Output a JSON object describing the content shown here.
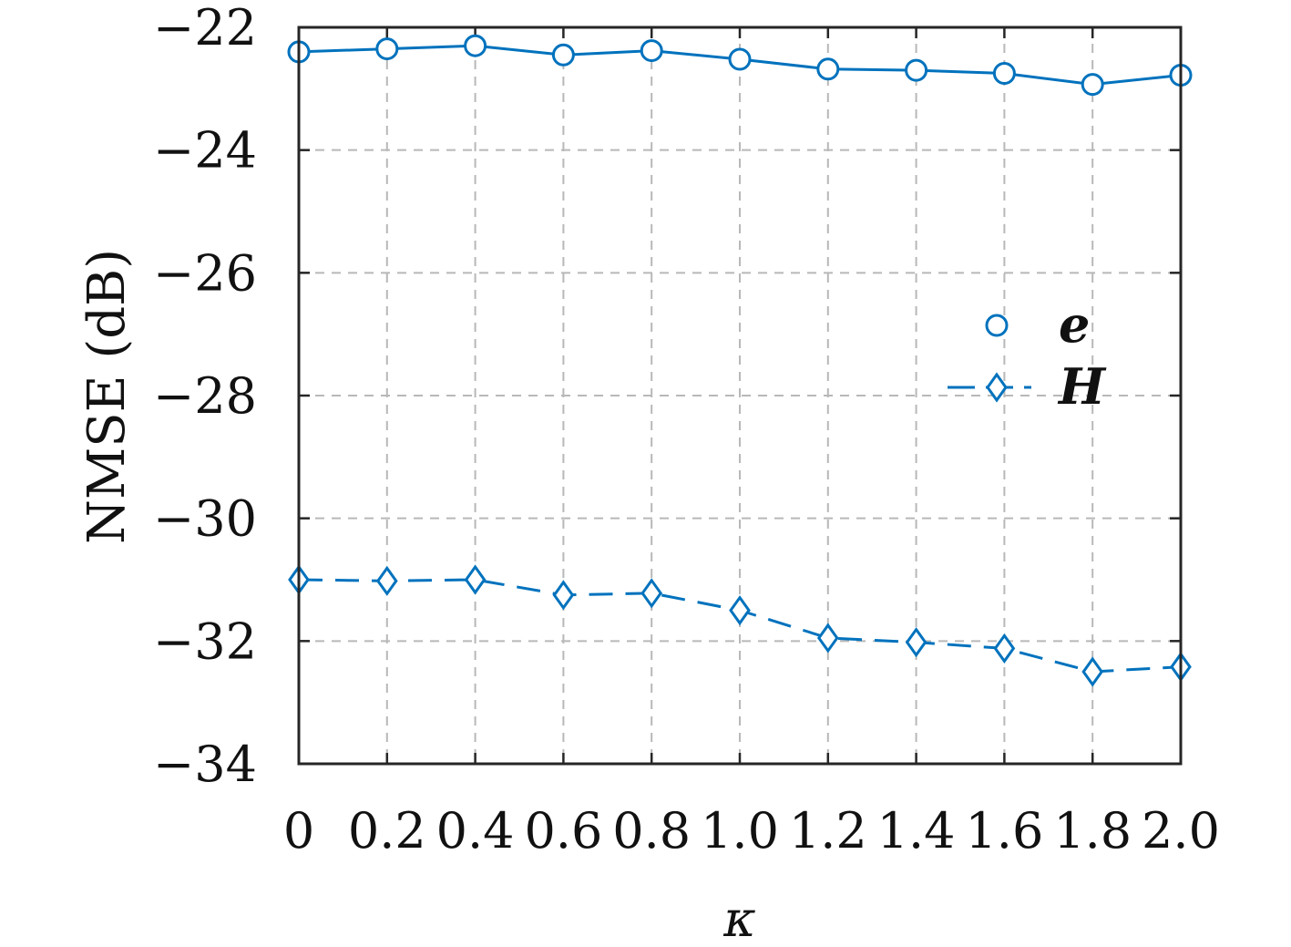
{
  "chart_data": {
    "type": "line",
    "xlabel": "κ",
    "ylabel": "NMSE (dB)",
    "x": [
      0,
      0.2,
      0.4,
      0.6,
      0.8,
      1.0,
      1.2,
      1.4,
      1.6,
      1.8,
      2.0
    ],
    "x_tick_labels": [
      "0",
      "0.2",
      "0.4",
      "0.6",
      "0.8",
      "1.0",
      "1.2",
      "1.4",
      "1.6",
      "1.8",
      "2.0"
    ],
    "y_ticks": [
      -22,
      -24,
      -26,
      -28,
      -30,
      -32,
      -34
    ],
    "y_tick_labels": [
      "−22",
      "−24",
      "−26",
      "−28",
      "−30",
      "−32",
      "−34"
    ],
    "xlim": [
      0,
      2.0
    ],
    "ylim": [
      -34,
      -22
    ],
    "grid": true,
    "legend_position": "right, middle",
    "color": "#0072BD",
    "series": [
      {
        "name": "e",
        "marker": "circle",
        "line_style": "solid",
        "legend_shows_line": false,
        "values": [
          -22.4,
          -22.35,
          -22.3,
          -22.45,
          -22.38,
          -22.52,
          -22.68,
          -22.7,
          -22.75,
          -22.93,
          -22.78
        ]
      },
      {
        "name": "H",
        "marker": "diamond",
        "line_style": "dashed",
        "legend_shows_line": true,
        "values": [
          -31.0,
          -31.02,
          -31.0,
          -31.25,
          -31.22,
          -31.5,
          -31.95,
          -32.02,
          -32.12,
          -32.5,
          -32.42
        ]
      }
    ]
  }
}
